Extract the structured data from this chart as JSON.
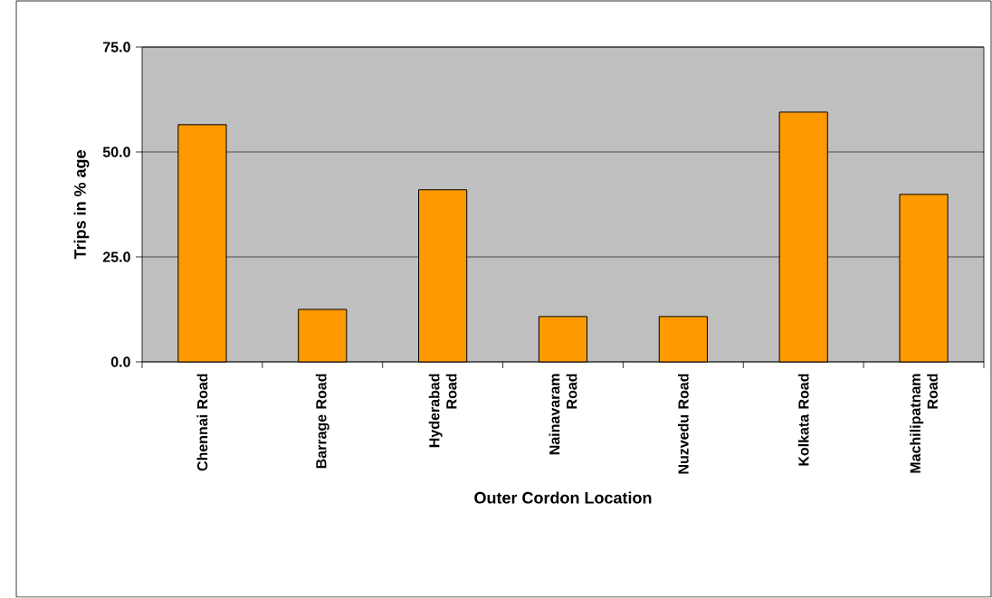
{
  "chart_data": {
    "type": "bar",
    "xlabel": "Outer Cordon Location",
    "ylabel": "Trips in % age",
    "categories": [
      "Chennai Road",
      "Barrage Road",
      "Hyderabad Road",
      "Nainavaram Road",
      "Nuzvedu Road",
      "Kolkata Road",
      "Machilipatnam Road"
    ],
    "values": [
      56.5,
      12.5,
      41.0,
      10.8,
      10.8,
      59.5,
      39.9
    ],
    "color": "#ff9900",
    "ylim": [
      0,
      75
    ],
    "yticks": [
      {
        "value": 0,
        "label": "0.0"
      },
      {
        "value": 25,
        "label": "25.0"
      },
      {
        "value": 50,
        "label": "50.0"
      },
      {
        "value": 75,
        "label": "75.0"
      }
    ],
    "grid": "y"
  }
}
